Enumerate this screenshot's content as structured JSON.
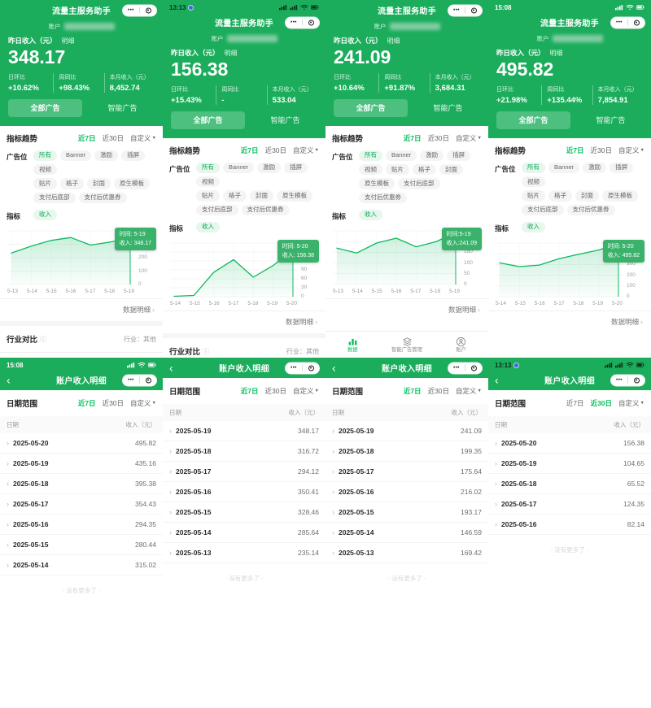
{
  "icons": {
    "more_glyph": "•••",
    "back_glyph": "‹",
    "caret_glyph": "▼",
    "chevron_glyph": "›",
    "info_glyph": "ⓘ"
  },
  "colors": {
    "brand_green": "#1bad5c",
    "accent_green": "#07c160",
    "chart_line": "#0cb85f",
    "tooltip_bg": "#3ab26b",
    "pill_active_bg": "#e7f7ee",
    "pill_active_text": "#08a854",
    "all_ads_btn_bg": "rgba(255,255,255,0.22)"
  },
  "shared": {
    "app_title": "流量主服务助手",
    "account_label": "账户",
    "yesterday_label": "昨日收入（元）",
    "detail_label": "明细",
    "stats_labels": {
      "day": "日环比",
      "week": "周同比",
      "month": "本月收入（元）"
    },
    "all_ads_btn": "全部广告",
    "smart_ads_btn": "智能广告",
    "trend_title": "指标趋势",
    "range_7": "近7日",
    "range_30": "近30日",
    "range_custom": "自定义",
    "adslot_label": "广告位",
    "metric_label": "指标",
    "metric_income": "收入",
    "data_detail_link": "数据明细",
    "industry_title": "行业对比",
    "industry_value": "行业：其他",
    "tabs": [
      {
        "label": "数据",
        "icon": "bar-chart-icon"
      },
      {
        "label": "智能广告管理",
        "icon": "layers-icon"
      },
      {
        "label": "账户",
        "icon": "user-icon"
      }
    ],
    "income_page_title": "账户收入明细",
    "date_range_label": "日期范围",
    "col_date": "日期",
    "col_income": "收入（元）",
    "no_more": "- 没有更多了 -"
  },
  "top_panels": [
    {
      "status_bar": null,
      "big_value": "348.17",
      "stats": {
        "day": "+10.62%",
        "week": "+98.43%",
        "month": "8,452.74"
      },
      "adslot_rows": [
        [
          "所有",
          "Banner",
          "激励",
          "插屏",
          "视频"
        ],
        [
          "贴片",
          "格子",
          "封面",
          "原生模板"
        ],
        [
          "支付后底部",
          "支付后优惠券"
        ]
      ],
      "active_adslot": "所有",
      "active_range": "近7日",
      "show_industry": true,
      "show_tabbar": true,
      "chart_data": {
        "type": "line",
        "x": [
          "5-13",
          "5-14",
          "5-15",
          "5-16",
          "5-17",
          "5-18",
          "5-19"
        ],
        "values": [
          235.14,
          285.64,
          328.46,
          350.41,
          294.12,
          316.72,
          348.17
        ],
        "ylim": [
          0,
          400
        ],
        "yticks": [
          400,
          300,
          200,
          100,
          0
        ],
        "tooltip": {
          "time_text": "时间: 5-19",
          "income_text": "收入: 348.17"
        }
      }
    },
    {
      "status_bar": {
        "time": "13:13",
        "theme": "dark"
      },
      "big_value": "156.38",
      "stats": {
        "day": "+15.43%",
        "week": "-",
        "month": "533.04"
      },
      "adslot_rows": [
        [
          "所有",
          "Banner",
          "激励",
          "插屏",
          "视频"
        ],
        [
          "贴片",
          "格子",
          "封面",
          "原生模板"
        ],
        [
          "支付后底部",
          "支付后优惠券"
        ]
      ],
      "active_adslot": "所有",
      "active_range": "近7日",
      "show_industry": true,
      "show_tabbar": true,
      "chart_data": {
        "type": "line",
        "x": [
          "5-14",
          "5-15",
          "5-16",
          "5-17",
          "5-18",
          "5-19",
          "5-20"
        ],
        "values": [
          1.5,
          4.2,
          82.14,
          124.35,
          65.52,
          104.65,
          156.38
        ],
        "ylim": [
          0,
          180
        ],
        "yticks": [
          180,
          150,
          120,
          90,
          60,
          30,
          0
        ],
        "tooltip": {
          "time_text": "时间: 5-20",
          "income_text": "收入: 156.38"
        }
      }
    },
    {
      "status_bar": null,
      "big_value": "241.09",
      "stats": {
        "day": "+10.64%",
        "week": "+91.87%",
        "month": "3,684.31"
      },
      "adslot_rows": [
        [
          "所有",
          "Banner",
          "激励",
          "插屏"
        ],
        [
          "视频",
          "贴片",
          "格子",
          "封面"
        ],
        [
          "原生模板",
          "支付后底部",
          "支付后优惠券"
        ]
      ],
      "active_adslot": "所有",
      "active_range": "近7日",
      "show_industry": false,
      "show_tabbar": true,
      "chart_data": {
        "type": "line",
        "x": [
          "5-13",
          "5-14",
          "5-15",
          "5-16",
          "5-17",
          "5-18",
          "5-19"
        ],
        "values": [
          169.42,
          146.59,
          193.17,
          216.02,
          175.64,
          199.35,
          241.09
        ],
        "ylim": [
          0,
          250
        ],
        "yticks": [
          250,
          200,
          150,
          100,
          50,
          0
        ],
        "tooltip": {
          "time_text": "时间:5-19",
          "income_text": "收入:241.09"
        }
      }
    },
    {
      "status_bar": {
        "time": "15:08",
        "theme": "light"
      },
      "big_value": "495.82",
      "stats": {
        "day": "+21.98%",
        "week": "+135.44%",
        "month": "7,854.91"
      },
      "adslot_rows": [
        [
          "所有",
          "Banner",
          "激励",
          "插屏",
          "视频"
        ],
        [
          "贴片",
          "格子",
          "封面",
          "原生模板"
        ],
        [
          "支付后底部",
          "支付后优惠券"
        ]
      ],
      "active_adslot": "所有",
      "active_range": "近7日",
      "show_industry": false,
      "show_tabbar": false,
      "chart_data": {
        "type": "line",
        "x": [
          "5-14",
          "5-15",
          "5-16",
          "5-17",
          "5-18",
          "5-19",
          "5-20"
        ],
        "values": [
          315.02,
          280.44,
          294.35,
          354.43,
          395.38,
          435.16,
          495.82
        ],
        "ylim": [
          0,
          500
        ],
        "yticks": [
          500,
          400,
          300,
          200,
          100,
          0
        ],
        "tooltip": {
          "time_text": "时间: 5-20",
          "income_text": "收入: 495.82"
        }
      }
    }
  ],
  "bottom_panels": [
    {
      "status_bar": {
        "time": "15:08",
        "theme": "light"
      },
      "active_range": "近7日",
      "rows": [
        {
          "date": "2025-05-20",
          "value": "495.82"
        },
        {
          "date": "2025-05-19",
          "value": "435.16"
        },
        {
          "date": "2025-05-18",
          "value": "395.38"
        },
        {
          "date": "2025-05-17",
          "value": "354.43"
        },
        {
          "date": "2025-05-16",
          "value": "294.35"
        },
        {
          "date": "2025-05-15",
          "value": "280.44"
        },
        {
          "date": "2025-05-14",
          "value": "315.02"
        }
      ]
    },
    {
      "status_bar": null,
      "active_range": "近7日",
      "rows": [
        {
          "date": "2025-05-19",
          "value": "348.17"
        },
        {
          "date": "2025-05-18",
          "value": "316.72"
        },
        {
          "date": "2025-05-17",
          "value": "294.12"
        },
        {
          "date": "2025-05-16",
          "value": "350.41"
        },
        {
          "date": "2025-05-15",
          "value": "328.46"
        },
        {
          "date": "2025-05-14",
          "value": "285.64"
        },
        {
          "date": "2025-05-13",
          "value": "235.14"
        }
      ]
    },
    {
      "status_bar": null,
      "active_range": "近7日",
      "rows": [
        {
          "date": "2025-05-19",
          "value": "241.09"
        },
        {
          "date": "2025-05-18",
          "value": "199.35"
        },
        {
          "date": "2025-05-17",
          "value": "175.64"
        },
        {
          "date": "2025-05-16",
          "value": "216.02"
        },
        {
          "date": "2025-05-15",
          "value": "193.17"
        },
        {
          "date": "2025-05-14",
          "value": "146.59"
        },
        {
          "date": "2025-05-13",
          "value": "169.42"
        }
      ]
    },
    {
      "status_bar": {
        "time": "13:13",
        "theme": "dark"
      },
      "active_range": "近30日",
      "rows": [
        {
          "date": "2025-05-20",
          "value": "156.38"
        },
        {
          "date": "2025-05-19",
          "value": "104.65"
        },
        {
          "date": "2025-05-18",
          "value": "65.52"
        },
        {
          "date": "2025-05-17",
          "value": "124.35"
        },
        {
          "date": "2025-05-16",
          "value": "82.14"
        }
      ]
    }
  ]
}
